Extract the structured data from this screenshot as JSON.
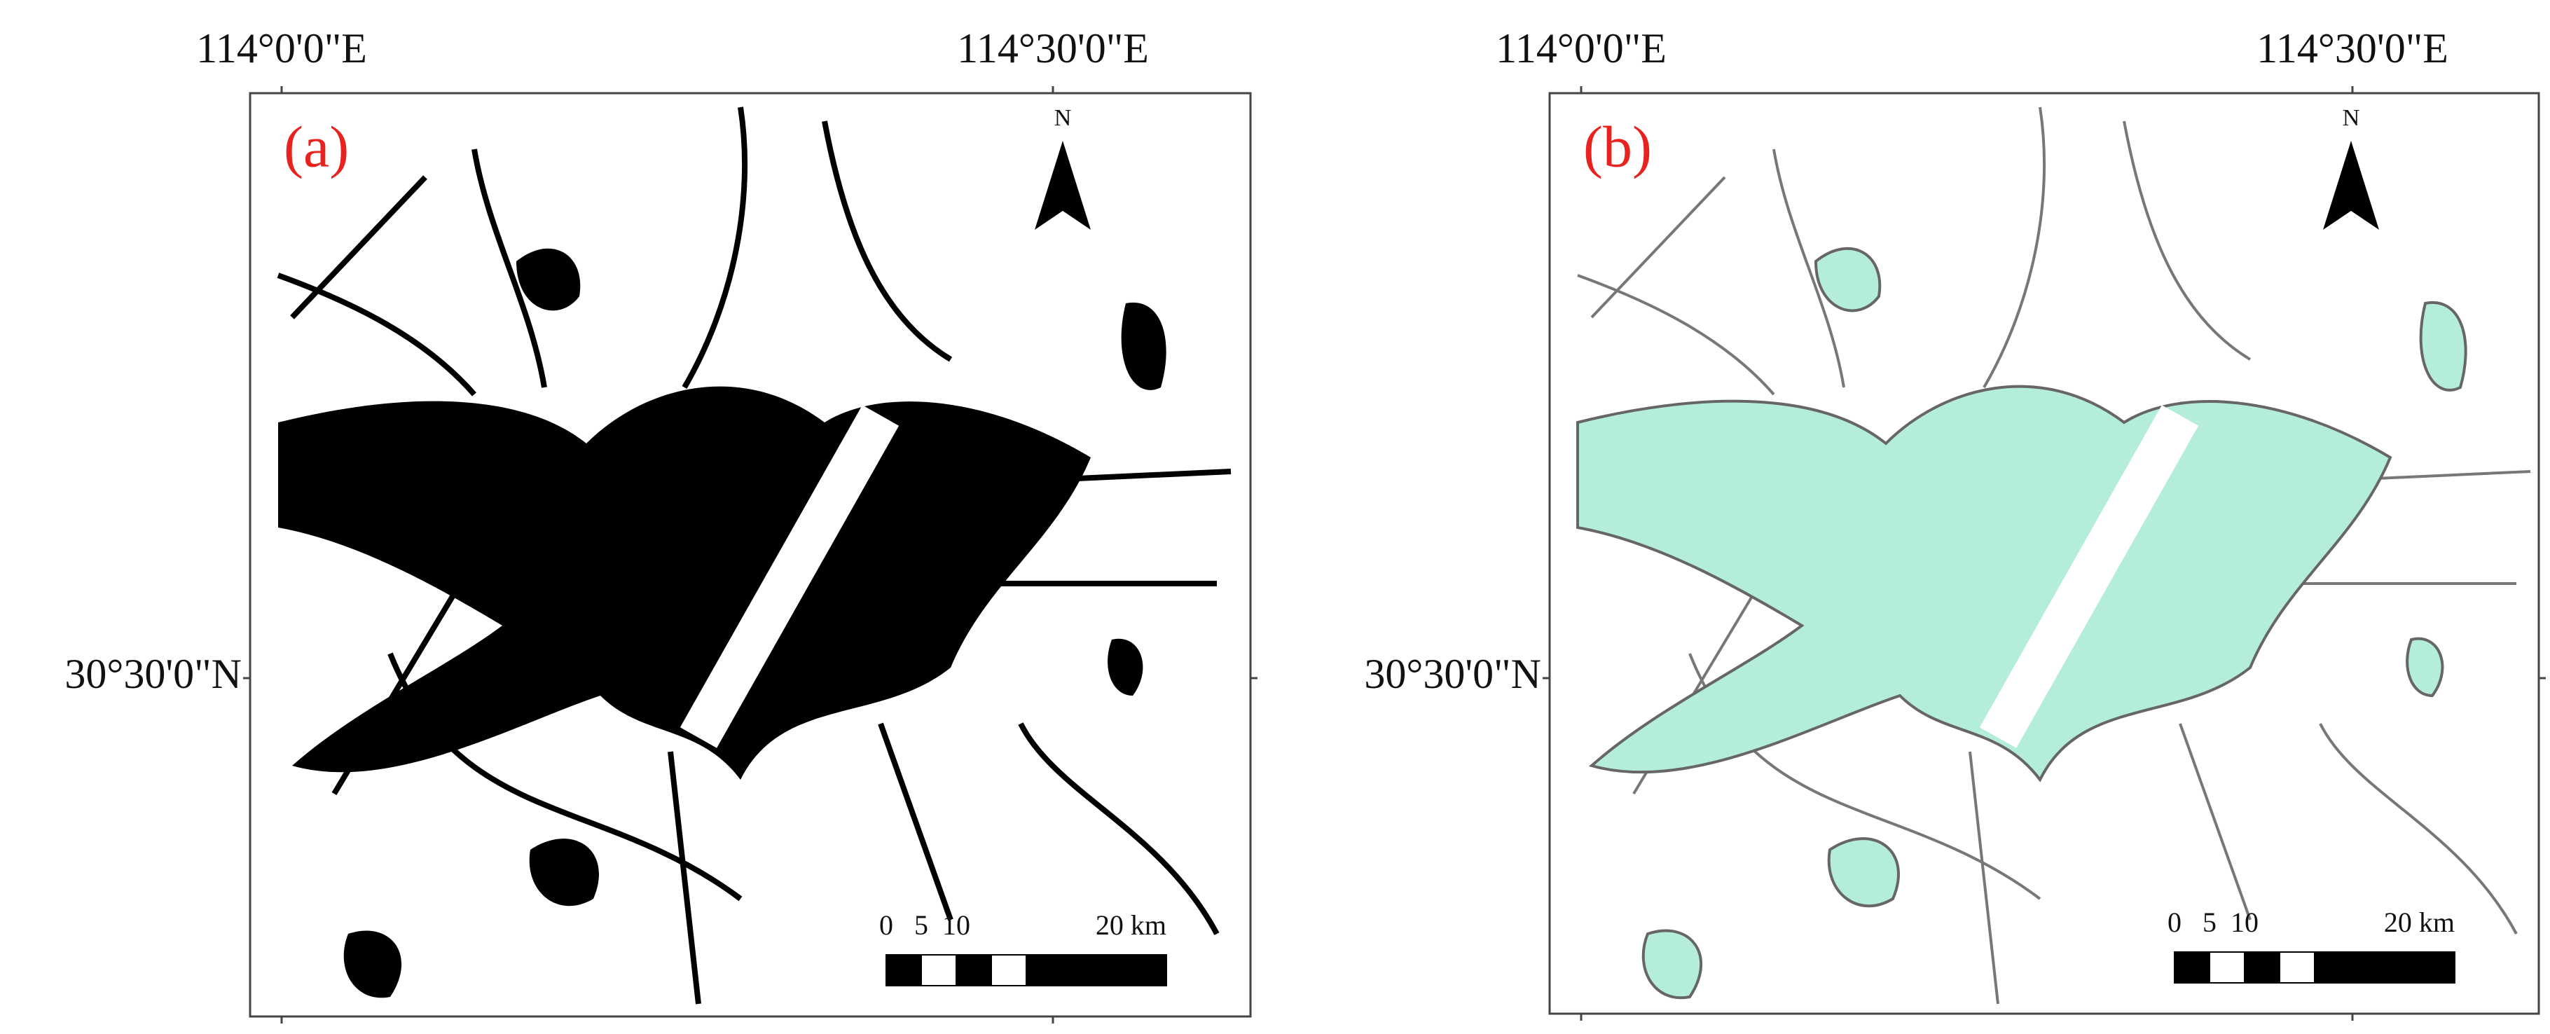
{
  "panels": [
    {
      "label": "(a)",
      "lon_labels": [
        "114°0'0\"E",
        "114°30'0\"E"
      ],
      "lat_label": "30°30'0\"N",
      "north": "N",
      "scale_labels": [
        "0",
        "5",
        "10",
        "20 km"
      ]
    },
    {
      "label": "(b)",
      "lon_labels": [
        "114°0'0\"E",
        "114°30'0\"E"
      ],
      "lat_label": "30°30'0\"N",
      "north": "N",
      "scale_labels": [
        "0",
        "5",
        "10",
        "20 km"
      ]
    }
  ]
}
